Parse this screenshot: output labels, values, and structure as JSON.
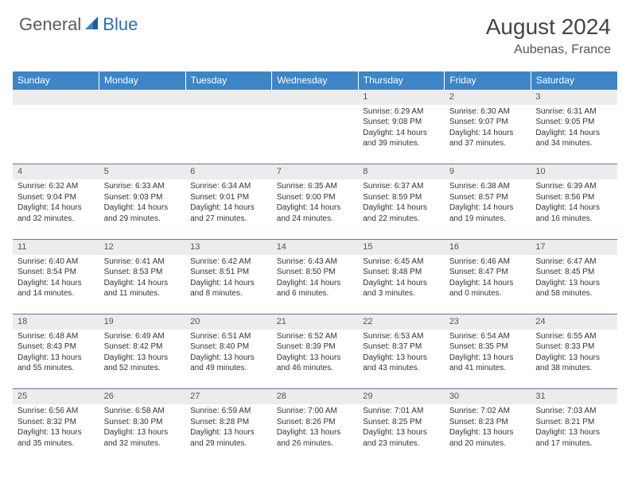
{
  "logo": {
    "part1": "General",
    "part2": "Blue"
  },
  "title": "August 2024",
  "location": "Aubenas, France",
  "colors": {
    "header_bg": "#3d85c6",
    "header_text": "#ffffff",
    "daynum_bg": "#ececec",
    "border": "#5a7ca0",
    "logo_gray": "#5a5a5a",
    "logo_blue": "#2f6fa8",
    "text": "#333333"
  },
  "weekdays": [
    "Sunday",
    "Monday",
    "Tuesday",
    "Wednesday",
    "Thursday",
    "Friday",
    "Saturday"
  ],
  "weeks": [
    [
      null,
      null,
      null,
      null,
      {
        "n": "1",
        "sunrise": "6:29 AM",
        "sunset": "9:08 PM",
        "daylight": "14 hours and 39 minutes."
      },
      {
        "n": "2",
        "sunrise": "6:30 AM",
        "sunset": "9:07 PM",
        "daylight": "14 hours and 37 minutes."
      },
      {
        "n": "3",
        "sunrise": "6:31 AM",
        "sunset": "9:05 PM",
        "daylight": "14 hours and 34 minutes."
      }
    ],
    [
      {
        "n": "4",
        "sunrise": "6:32 AM",
        "sunset": "9:04 PM",
        "daylight": "14 hours and 32 minutes."
      },
      {
        "n": "5",
        "sunrise": "6:33 AM",
        "sunset": "9:03 PM",
        "daylight": "14 hours and 29 minutes."
      },
      {
        "n": "6",
        "sunrise": "6:34 AM",
        "sunset": "9:01 PM",
        "daylight": "14 hours and 27 minutes."
      },
      {
        "n": "7",
        "sunrise": "6:35 AM",
        "sunset": "9:00 PM",
        "daylight": "14 hours and 24 minutes."
      },
      {
        "n": "8",
        "sunrise": "6:37 AM",
        "sunset": "8:59 PM",
        "daylight": "14 hours and 22 minutes."
      },
      {
        "n": "9",
        "sunrise": "6:38 AM",
        "sunset": "8:57 PM",
        "daylight": "14 hours and 19 minutes."
      },
      {
        "n": "10",
        "sunrise": "6:39 AM",
        "sunset": "8:56 PM",
        "daylight": "14 hours and 16 minutes."
      }
    ],
    [
      {
        "n": "11",
        "sunrise": "6:40 AM",
        "sunset": "8:54 PM",
        "daylight": "14 hours and 14 minutes."
      },
      {
        "n": "12",
        "sunrise": "6:41 AM",
        "sunset": "8:53 PM",
        "daylight": "14 hours and 11 minutes."
      },
      {
        "n": "13",
        "sunrise": "6:42 AM",
        "sunset": "8:51 PM",
        "daylight": "14 hours and 8 minutes."
      },
      {
        "n": "14",
        "sunrise": "6:43 AM",
        "sunset": "8:50 PM",
        "daylight": "14 hours and 6 minutes."
      },
      {
        "n": "15",
        "sunrise": "6:45 AM",
        "sunset": "8:48 PM",
        "daylight": "14 hours and 3 minutes."
      },
      {
        "n": "16",
        "sunrise": "6:46 AM",
        "sunset": "8:47 PM",
        "daylight": "14 hours and 0 minutes."
      },
      {
        "n": "17",
        "sunrise": "6:47 AM",
        "sunset": "8:45 PM",
        "daylight": "13 hours and 58 minutes."
      }
    ],
    [
      {
        "n": "18",
        "sunrise": "6:48 AM",
        "sunset": "8:43 PM",
        "daylight": "13 hours and 55 minutes."
      },
      {
        "n": "19",
        "sunrise": "6:49 AM",
        "sunset": "8:42 PM",
        "daylight": "13 hours and 52 minutes."
      },
      {
        "n": "20",
        "sunrise": "6:51 AM",
        "sunset": "8:40 PM",
        "daylight": "13 hours and 49 minutes."
      },
      {
        "n": "21",
        "sunrise": "6:52 AM",
        "sunset": "8:39 PM",
        "daylight": "13 hours and 46 minutes."
      },
      {
        "n": "22",
        "sunrise": "6:53 AM",
        "sunset": "8:37 PM",
        "daylight": "13 hours and 43 minutes."
      },
      {
        "n": "23",
        "sunrise": "6:54 AM",
        "sunset": "8:35 PM",
        "daylight": "13 hours and 41 minutes."
      },
      {
        "n": "24",
        "sunrise": "6:55 AM",
        "sunset": "8:33 PM",
        "daylight": "13 hours and 38 minutes."
      }
    ],
    [
      {
        "n": "25",
        "sunrise": "6:56 AM",
        "sunset": "8:32 PM",
        "daylight": "13 hours and 35 minutes."
      },
      {
        "n": "26",
        "sunrise": "6:58 AM",
        "sunset": "8:30 PM",
        "daylight": "13 hours and 32 minutes."
      },
      {
        "n": "27",
        "sunrise": "6:59 AM",
        "sunset": "8:28 PM",
        "daylight": "13 hours and 29 minutes."
      },
      {
        "n": "28",
        "sunrise": "7:00 AM",
        "sunset": "8:26 PM",
        "daylight": "13 hours and 26 minutes."
      },
      {
        "n": "29",
        "sunrise": "7:01 AM",
        "sunset": "8:25 PM",
        "daylight": "13 hours and 23 minutes."
      },
      {
        "n": "30",
        "sunrise": "7:02 AM",
        "sunset": "8:23 PM",
        "daylight": "13 hours and 20 minutes."
      },
      {
        "n": "31",
        "sunrise": "7:03 AM",
        "sunset": "8:21 PM",
        "daylight": "13 hours and 17 minutes."
      }
    ]
  ],
  "labels": {
    "sunrise": "Sunrise:",
    "sunset": "Sunset:",
    "daylight": "Daylight:"
  }
}
